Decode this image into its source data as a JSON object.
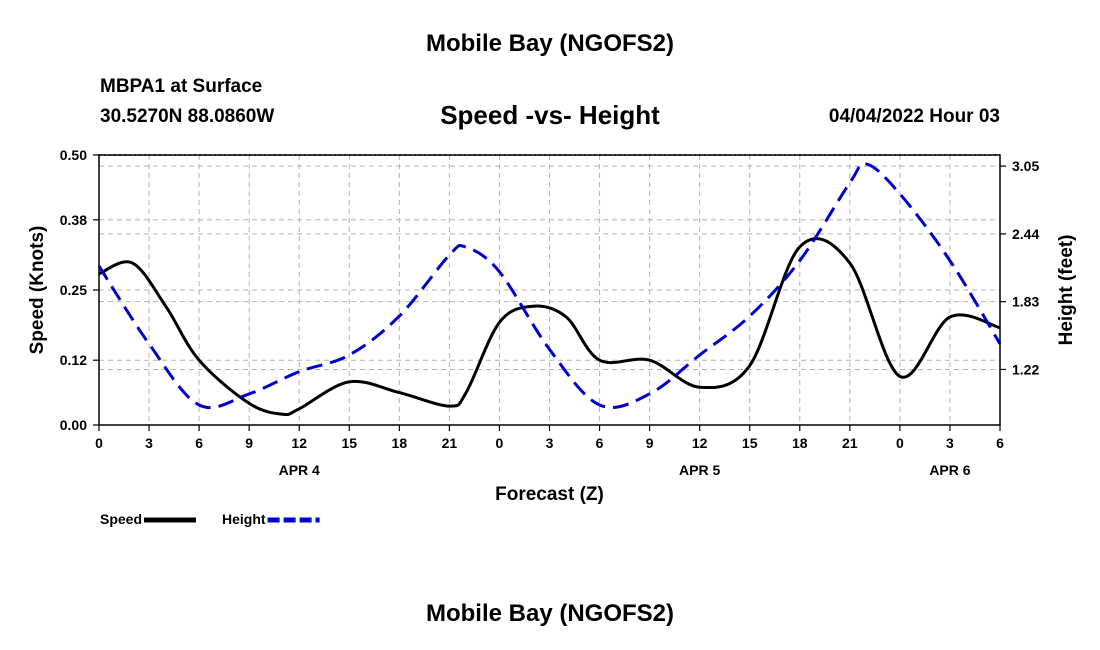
{
  "header": {
    "main_title": "Mobile Bay (NGOFS2)",
    "station": "MBPA1 at Surface",
    "coords": "30.5270N  88.0860W",
    "subtitle": "Speed -vs- Height",
    "datetime": "04/04/2022 Hour 03"
  },
  "footer": {
    "title": "Mobile Bay (NGOFS2)"
  },
  "chart_data": {
    "type": "line",
    "title": "Speed -vs- Height",
    "xlabel": "Forecast (Z)",
    "ylabel": "Speed (Knots)",
    "y2label": "Height (feet)",
    "xlim": [
      0,
      54
    ],
    "ylim": [
      0,
      0.5
    ],
    "y2lim": [
      0.72,
      3.15
    ],
    "x_ticks": [
      0,
      3,
      6,
      9,
      12,
      15,
      18,
      21,
      24,
      27,
      30,
      33,
      36,
      39,
      42,
      45,
      48,
      51,
      54
    ],
    "x_tick_labels": [
      "0",
      "3",
      "6",
      "9",
      "12",
      "15",
      "18",
      "21",
      "0",
      "3",
      "6",
      "9",
      "12",
      "15",
      "18",
      "21",
      "0",
      "3",
      "6"
    ],
    "date_labels": [
      {
        "x": 12,
        "label": "APR 4"
      },
      {
        "x": 36,
        "label": "APR 5"
      },
      {
        "x": 51,
        "label": "APR 6"
      }
    ],
    "y_ticks": [
      0.0,
      0.12,
      0.25,
      0.38,
      0.5
    ],
    "y_tick_labels": [
      "0.00",
      "0.12",
      "0.25",
      "0.38",
      "0.50"
    ],
    "y2_ticks": [
      1.22,
      1.83,
      2.44,
      3.05
    ],
    "y2_tick_labels": [
      "1.22",
      "1.83",
      "2.44",
      "3.05"
    ],
    "grid": true,
    "legend": [
      {
        "name": "Speed",
        "color": "#000000",
        "dash": "solid"
      },
      {
        "name": "Height",
        "color": "#0000cc",
        "dash": "dashed"
      }
    ],
    "series": [
      {
        "name": "Speed",
        "axis": "left",
        "color": "#000000",
        "dash": "solid",
        "x": [
          0,
          2,
          4,
          6,
          9,
          11,
          12,
          15,
          18,
          21,
          22,
          24,
          26,
          28,
          30,
          33,
          36,
          39,
          42,
          45,
          48,
          51,
          54
        ],
        "values": [
          0.28,
          0.3,
          0.22,
          0.12,
          0.04,
          0.02,
          0.03,
          0.08,
          0.06,
          0.035,
          0.06,
          0.19,
          0.22,
          0.2,
          0.12,
          0.12,
          0.07,
          0.11,
          0.33,
          0.3,
          0.09,
          0.2,
          0.18
        ]
      },
      {
        "name": "Height",
        "axis": "right",
        "color": "#0000cc",
        "dash": "dashed",
        "x": [
          0,
          3,
          6,
          9,
          12,
          15,
          18,
          21,
          22,
          24,
          27,
          30,
          33,
          36,
          39,
          42,
          45,
          46,
          48,
          51,
          54
        ],
        "values": [
          2.15,
          1.45,
          0.9,
          1.0,
          1.2,
          1.35,
          1.7,
          2.25,
          2.32,
          2.1,
          1.4,
          0.9,
          1.0,
          1.35,
          1.7,
          2.2,
          2.9,
          3.07,
          2.8,
          2.2,
          1.45
        ]
      }
    ]
  }
}
